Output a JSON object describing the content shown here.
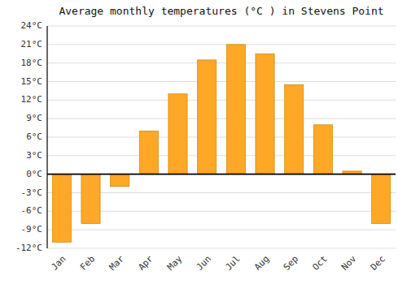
{
  "chart_data": {
    "type": "bar",
    "title": "Average monthly temperatures (°C ) in Stevens Point",
    "categories": [
      "Jan",
      "Feb",
      "Mar",
      "Apr",
      "May",
      "Jun",
      "Jul",
      "Aug",
      "Sep",
      "Oct",
      "Nov",
      "Dec"
    ],
    "values": [
      -11,
      -8,
      -2,
      7,
      13,
      18.5,
      21,
      19.5,
      14.5,
      8,
      0.5,
      -8
    ],
    "color": "#FFA726",
    "ylim": [
      -12,
      24
    ],
    "yticks": [
      {
        "value": -12,
        "label": "-12°C"
      },
      {
        "value": -9,
        "label": "-9°C"
      },
      {
        "value": -6,
        "label": "-6°C"
      },
      {
        "value": -3,
        "label": "-3°C"
      },
      {
        "value": 0,
        "label": "0°C"
      },
      {
        "value": 3,
        "label": "3°C"
      },
      {
        "value": 6,
        "label": "6°C"
      },
      {
        "value": 9,
        "label": "9°C"
      },
      {
        "value": 12,
        "label": "12°C"
      },
      {
        "value": 15,
        "label": "15°C"
      },
      {
        "value": 18,
        "label": "18°C"
      },
      {
        "value": 21,
        "label": "21°C"
      },
      {
        "value": 24,
        "label": "24°C"
      }
    ],
    "grid": true
  }
}
